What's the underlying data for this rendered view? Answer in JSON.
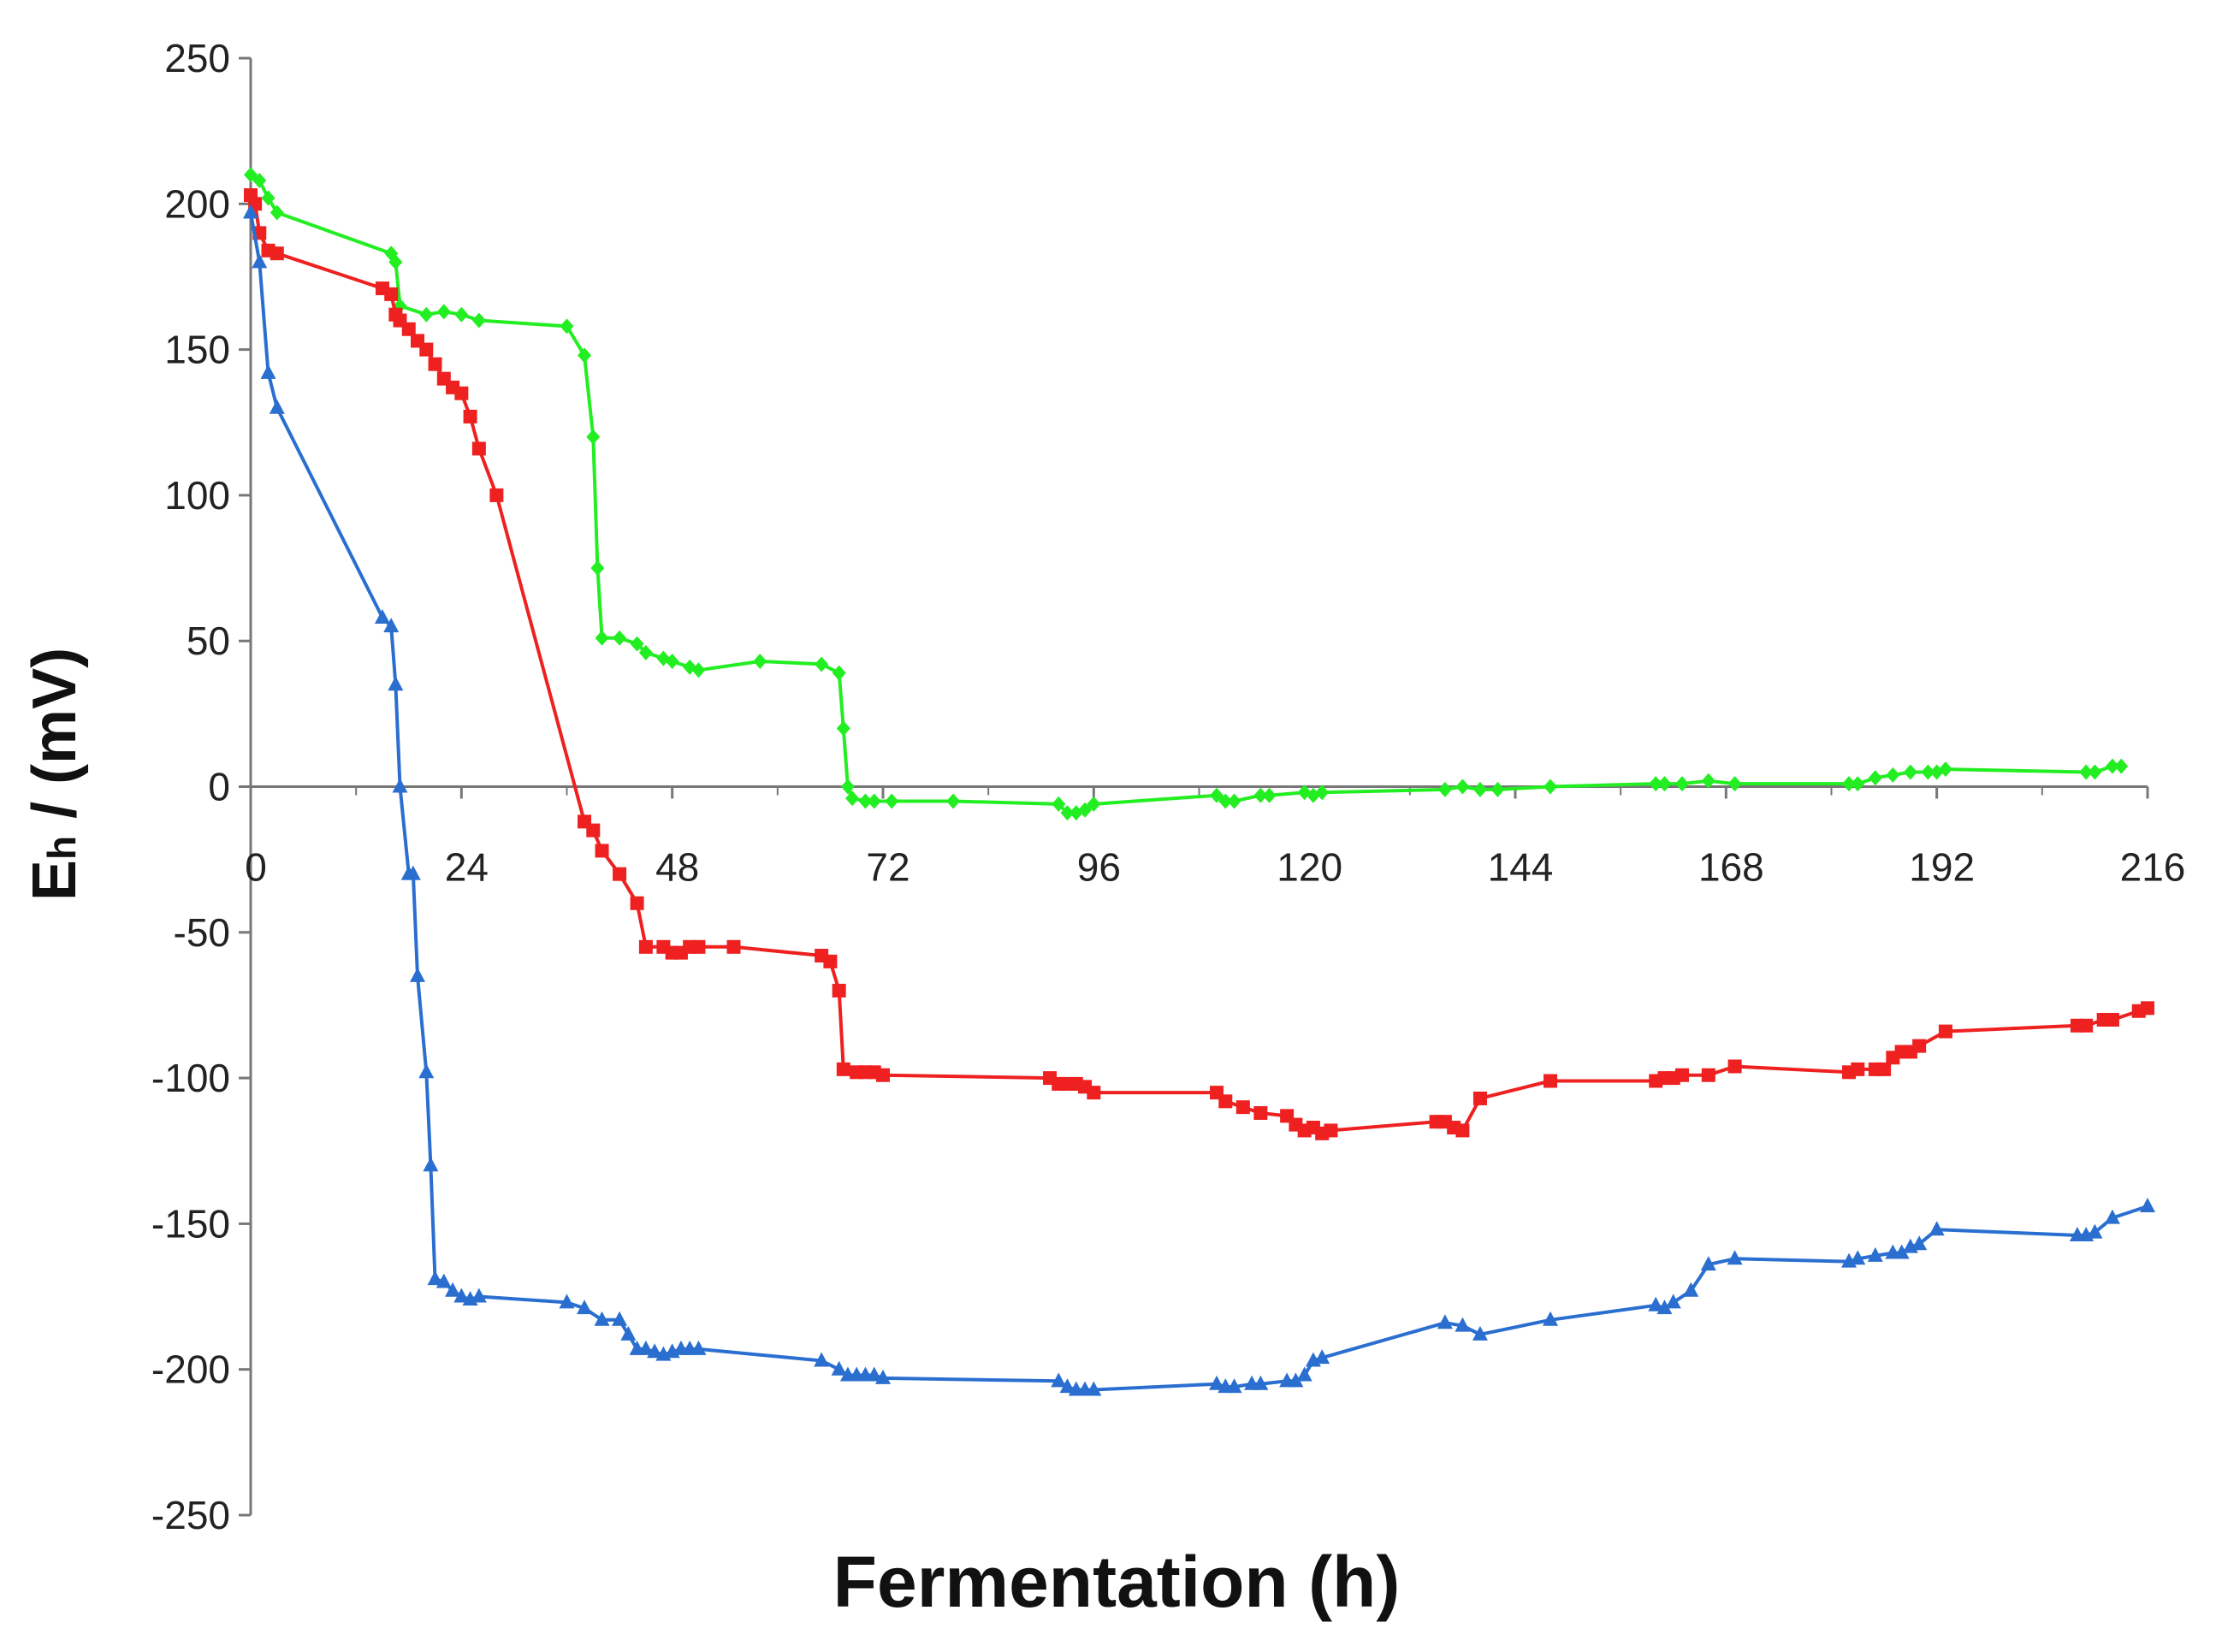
{
  "chart_data": {
    "type": "line",
    "title": "",
    "xlabel": "Fermentation (h)",
    "ylabel_main": "E",
    "ylabel_sub": "h",
    "ylabel_rest": " / (mV)",
    "xlim": [
      0,
      216
    ],
    "ylim": [
      -250,
      250
    ],
    "x_ticks": [
      0,
      24,
      48,
      72,
      96,
      120,
      144,
      168,
      192,
      216
    ],
    "x_tick_labels": [
      "0",
      "24",
      "48",
      "72",
      "96",
      "120",
      "144",
      "168",
      "192",
      "216"
    ],
    "y_ticks": [
      250,
      200,
      150,
      100,
      50,
      0,
      -50,
      -100,
      -150,
      -200,
      -250
    ],
    "y_tick_labels": [
      "250",
      "200",
      "150",
      "100",
      "50",
      "0",
      "-50",
      "-100",
      "-150",
      "-200",
      "-250"
    ],
    "series": [
      {
        "name": "green",
        "color": "#22ee22",
        "marker": "diamond",
        "points": [
          [
            0,
            210
          ],
          [
            1,
            208
          ],
          [
            2,
            202
          ],
          [
            3,
            197
          ],
          [
            16,
            183
          ],
          [
            16.5,
            180
          ],
          [
            17,
            165
          ],
          [
            20,
            162
          ],
          [
            22,
            163
          ],
          [
            24,
            162
          ],
          [
            26,
            160
          ],
          [
            36,
            158
          ],
          [
            38,
            148
          ],
          [
            39,
            120
          ],
          [
            39.5,
            75
          ],
          [
            40,
            51
          ],
          [
            42,
            51
          ],
          [
            44,
            49
          ],
          [
            45,
            46
          ],
          [
            47,
            44
          ],
          [
            48,
            43
          ],
          [
            50,
            41
          ],
          [
            51,
            40
          ],
          [
            58,
            43
          ],
          [
            65,
            42
          ],
          [
            67,
            39
          ],
          [
            67.5,
            20
          ],
          [
            68,
            0
          ],
          [
            68.5,
            -4
          ],
          [
            70,
            -5
          ],
          [
            71,
            -5
          ],
          [
            73,
            -5
          ],
          [
            80,
            -5
          ],
          [
            92,
            -6
          ],
          [
            93,
            -9
          ],
          [
            94,
            -9
          ],
          [
            95,
            -8
          ],
          [
            96,
            -6
          ],
          [
            110,
            -3
          ],
          [
            111,
            -5
          ],
          [
            112,
            -5
          ],
          [
            115,
            -3
          ],
          [
            116,
            -3
          ],
          [
            120,
            -2
          ],
          [
            121,
            -3
          ],
          [
            122,
            -2
          ],
          [
            136,
            -1
          ],
          [
            138,
            0
          ],
          [
            140,
            -1
          ],
          [
            142,
            -1
          ],
          [
            148,
            0
          ],
          [
            160,
            1
          ],
          [
            161,
            1
          ],
          [
            163,
            1
          ],
          [
            166,
            2
          ],
          [
            169,
            1
          ],
          [
            182,
            1
          ],
          [
            183,
            1
          ],
          [
            185,
            3
          ],
          [
            187,
            4
          ],
          [
            189,
            5
          ],
          [
            191,
            5
          ],
          [
            192,
            5
          ],
          [
            193,
            6
          ],
          [
            209,
            5
          ],
          [
            210,
            5
          ],
          [
            212,
            7
          ],
          [
            213,
            7
          ]
        ]
      },
      {
        "name": "red",
        "color": "#ee2020",
        "marker": "square",
        "points": [
          [
            0,
            203
          ],
          [
            0.5,
            200
          ],
          [
            1,
            190
          ],
          [
            2,
            184
          ],
          [
            3,
            183
          ],
          [
            15,
            171
          ],
          [
            16,
            169
          ],
          [
            16.5,
            162
          ],
          [
            17,
            160
          ],
          [
            18,
            157
          ],
          [
            19,
            153
          ],
          [
            20,
            150
          ],
          [
            21,
            145
          ],
          [
            22,
            140
          ],
          [
            23,
            137
          ],
          [
            24,
            135
          ],
          [
            25,
            127
          ],
          [
            26,
            116
          ],
          [
            28,
            100
          ],
          [
            38,
            -12
          ],
          [
            39,
            -15
          ],
          [
            40,
            -22
          ],
          [
            42,
            -30
          ],
          [
            44,
            -40
          ],
          [
            45,
            -55
          ],
          [
            47,
            -55
          ],
          [
            48,
            -57
          ],
          [
            49,
            -57
          ],
          [
            50,
            -55
          ],
          [
            51,
            -55
          ],
          [
            55,
            -55
          ],
          [
            65,
            -58
          ],
          [
            66,
            -60
          ],
          [
            67,
            -70
          ],
          [
            67.5,
            -97
          ],
          [
            69,
            -98
          ],
          [
            70,
            -98
          ],
          [
            71,
            -98
          ],
          [
            72,
            -99
          ],
          [
            91,
            -100
          ],
          [
            92,
            -102
          ],
          [
            93,
            -102
          ],
          [
            94,
            -102
          ],
          [
            95,
            -103
          ],
          [
            96,
            -105
          ],
          [
            110,
            -105
          ],
          [
            111,
            -108
          ],
          [
            113,
            -110
          ],
          [
            115,
            -112
          ],
          [
            118,
            -113
          ],
          [
            119,
            -116
          ],
          [
            120,
            -118
          ],
          [
            121,
            -117
          ],
          [
            122,
            -119
          ],
          [
            123,
            -118
          ],
          [
            135,
            -115
          ],
          [
            136,
            -115
          ],
          [
            137,
            -117
          ],
          [
            138,
            -118
          ],
          [
            140,
            -107
          ],
          [
            148,
            -101
          ],
          [
            160,
            -101
          ],
          [
            161,
            -100
          ],
          [
            162,
            -100
          ],
          [
            163,
            -99
          ],
          [
            166,
            -99
          ],
          [
            169,
            -96
          ],
          [
            182,
            -98
          ],
          [
            183,
            -97
          ],
          [
            185,
            -97
          ],
          [
            186,
            -97
          ],
          [
            187,
            -93
          ],
          [
            188,
            -91
          ],
          [
            189,
            -91
          ],
          [
            190,
            -89
          ],
          [
            193,
            -84
          ],
          [
            208,
            -82
          ],
          [
            209,
            -82
          ],
          [
            211,
            -80
          ],
          [
            212,
            -80
          ],
          [
            215,
            -77
          ],
          [
            216,
            -76
          ]
        ]
      },
      {
        "name": "blue",
        "color": "#2a6fd0",
        "marker": "triangle",
        "points": [
          [
            0,
            197
          ],
          [
            1,
            180
          ],
          [
            2,
            142
          ],
          [
            3,
            130
          ],
          [
            15,
            58
          ],
          [
            16,
            55
          ],
          [
            16.5,
            35
          ],
          [
            17,
            0
          ],
          [
            18,
            -30
          ],
          [
            18.5,
            -30
          ],
          [
            19,
            -65
          ],
          [
            20,
            -98
          ],
          [
            20.5,
            -130
          ],
          [
            21,
            -169
          ],
          [
            22,
            -170
          ],
          [
            23,
            -173
          ],
          [
            24,
            -175
          ],
          [
            25,
            -176
          ],
          [
            26,
            -175
          ],
          [
            36,
            -177
          ],
          [
            38,
            -179
          ],
          [
            40,
            -183
          ],
          [
            42,
            -183
          ],
          [
            43,
            -188
          ],
          [
            44,
            -193
          ],
          [
            45,
            -193
          ],
          [
            46,
            -194
          ],
          [
            47,
            -195
          ],
          [
            48,
            -194
          ],
          [
            49,
            -193
          ],
          [
            50,
            -193
          ],
          [
            51,
            -193
          ],
          [
            65,
            -197
          ],
          [
            67,
            -200
          ],
          [
            68,
            -202
          ],
          [
            69,
            -202
          ],
          [
            70,
            -202
          ],
          [
            71,
            -202
          ],
          [
            72,
            -203
          ],
          [
            92,
            -204
          ],
          [
            93,
            -206
          ],
          [
            94,
            -207
          ],
          [
            95,
            -207
          ],
          [
            96,
            -207
          ],
          [
            110,
            -205
          ],
          [
            111,
            -206
          ],
          [
            112,
            -206
          ],
          [
            114,
            -205
          ],
          [
            115,
            -205
          ],
          [
            118,
            -204
          ],
          [
            119,
            -204
          ],
          [
            120,
            -202
          ],
          [
            121,
            -197
          ],
          [
            122,
            -196
          ],
          [
            136,
            -184
          ],
          [
            138,
            -185
          ],
          [
            140,
            -188
          ],
          [
            148,
            -183
          ],
          [
            160,
            -178
          ],
          [
            161,
            -179
          ],
          [
            162,
            -177
          ],
          [
            164,
            -173
          ],
          [
            166,
            -164
          ],
          [
            169,
            -162
          ],
          [
            182,
            -163
          ],
          [
            183,
            -162
          ],
          [
            185,
            -161
          ],
          [
            187,
            -160
          ],
          [
            188,
            -160
          ],
          [
            189,
            -158
          ],
          [
            190,
            -157
          ],
          [
            192,
            -152
          ],
          [
            208,
            -154
          ],
          [
            209,
            -154
          ],
          [
            210,
            -153
          ],
          [
            212,
            -148
          ],
          [
            216,
            -144
          ]
        ]
      }
    ]
  }
}
